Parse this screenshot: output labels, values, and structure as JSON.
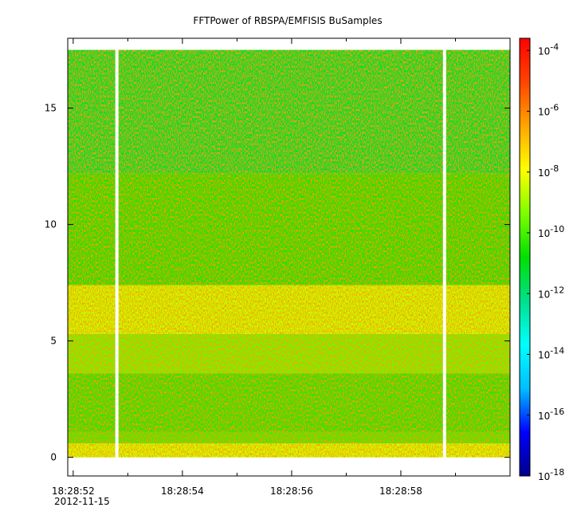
{
  "chart_data": {
    "type": "heatmap",
    "title": "FFTPower of RBSPA/EMFISIS  BuSamples",
    "xlabel": "",
    "ylabel": "",
    "x_date": "2012-11-15",
    "x_range_seconds": [
      "18:28:51.9",
      "18:29:00.0"
    ],
    "x_ticks": [
      "18:28:52",
      "18:28:54",
      "18:28:56",
      "18:28:58"
    ],
    "ylim": [
      -0.8,
      18.0
    ],
    "y_ticks": [
      "0",
      "5",
      "10",
      "15"
    ],
    "data_gaps": [
      {
        "time": "18:28:52.8"
      },
      {
        "time": "18:28:58.8"
      }
    ],
    "frequency_bands": [
      {
        "y_from": 0.0,
        "y_to": 0.6,
        "log10_power": -8.5
      },
      {
        "y_from": 0.6,
        "y_to": 1.1,
        "log10_power": -10.1
      },
      {
        "y_from": 1.1,
        "y_to": 3.6,
        "log10_power": -10.4
      },
      {
        "y_from": 3.6,
        "y_to": 5.3,
        "log10_power": -9.6
      },
      {
        "y_from": 5.3,
        "y_to": 7.4,
        "log10_power": -8.6
      },
      {
        "y_from": 7.4,
        "y_to": 12.2,
        "log10_power": -10.5
      },
      {
        "y_from": 12.2,
        "y_to": 17.5,
        "log10_power": -11.3
      }
    ],
    "colorbar": {
      "scale": "log",
      "range": [
        -18,
        -3.6
      ],
      "tick_exponents": [
        "-4",
        "-6",
        "-8",
        "-10",
        "-12",
        "-14",
        "-16",
        "-18"
      ],
      "tick_base": "10",
      "colors": [
        "#00008b",
        "#0000ff",
        "#00bfff",
        "#00ffff",
        "#00e08c",
        "#00e000",
        "#7fff00",
        "#ffff00",
        "#ffa500",
        "#ff4500",
        "#ff0000"
      ]
    },
    "grid": false
  }
}
